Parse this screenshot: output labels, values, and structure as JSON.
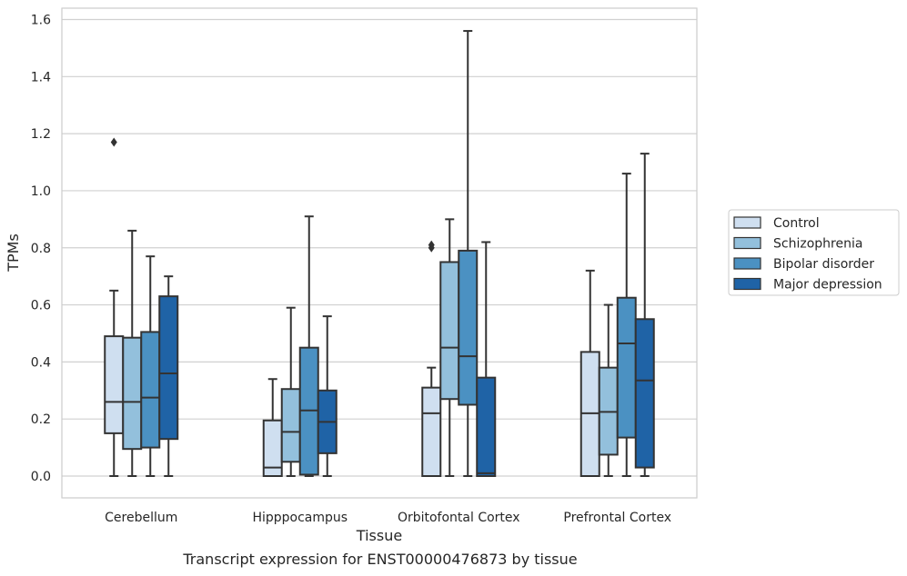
{
  "caption": "Transcript expression for ENST00000476873 by tissue",
  "colors": {
    "Control": "#cfdff0",
    "Schizophrenia": "#93c0dc",
    "Bipolar disorder": "#4b91c2",
    "Major depression": "#1f63a6",
    "grid": "#d0d0d0",
    "line": "#333333"
  },
  "chart_data": {
    "type": "box",
    "xlabel": "Tissue",
    "ylabel": "TPMs",
    "ylim": [
      -0.08,
      1.64
    ],
    "yticks": [
      "0.0",
      "0.2",
      "0.4",
      "0.6",
      "0.8",
      "1.0",
      "1.2",
      "1.4",
      "1.6"
    ],
    "categories": [
      "Cerebellum",
      "Hipppocampus",
      "Orbitofontal Cortex",
      "Prefrontal Cortex"
    ],
    "legend": {
      "placement": "right",
      "entries": [
        "Control",
        "Schizophrenia",
        "Bipolar disorder",
        "Major depression"
      ]
    },
    "grid": "horizontal",
    "series": [
      {
        "name": "Control",
        "boxes": [
          {
            "min": 0.0,
            "q1": 0.15,
            "median": 0.26,
            "q3": 0.49,
            "max": 0.65,
            "outliers": [
              1.17
            ]
          },
          {
            "min": 0.0,
            "q1": 0.0,
            "median": 0.03,
            "q3": 0.195,
            "max": 0.34,
            "outliers": []
          },
          {
            "min": 0.0,
            "q1": 0.0,
            "median": 0.22,
            "q3": 0.31,
            "max": 0.38,
            "outliers": [
              0.8,
              0.81
            ]
          },
          {
            "min": 0.0,
            "q1": 0.0,
            "median": 0.22,
            "q3": 0.435,
            "max": 0.72,
            "outliers": []
          }
        ]
      },
      {
        "name": "Schizophrenia",
        "boxes": [
          {
            "min": 0.0,
            "q1": 0.095,
            "median": 0.26,
            "q3": 0.485,
            "max": 0.86,
            "outliers": []
          },
          {
            "min": 0.0,
            "q1": 0.05,
            "median": 0.155,
            "q3": 0.305,
            "max": 0.59,
            "outliers": []
          },
          {
            "min": 0.0,
            "q1": 0.27,
            "median": 0.45,
            "q3": 0.75,
            "max": 0.9,
            "outliers": []
          },
          {
            "min": 0.0,
            "q1": 0.075,
            "median": 0.225,
            "q3": 0.38,
            "max": 0.6,
            "outliers": []
          }
        ]
      },
      {
        "name": "Bipolar disorder",
        "boxes": [
          {
            "min": 0.0,
            "q1": 0.1,
            "median": 0.275,
            "q3": 0.505,
            "max": 0.77,
            "outliers": []
          },
          {
            "min": 0.0,
            "q1": 0.005,
            "median": 0.23,
            "q3": 0.45,
            "max": 0.91,
            "outliers": []
          },
          {
            "min": 0.0,
            "q1": 0.25,
            "median": 0.42,
            "q3": 0.79,
            "max": 1.56,
            "outliers": []
          },
          {
            "min": 0.0,
            "q1": 0.135,
            "median": 0.465,
            "q3": 0.625,
            "max": 1.06,
            "outliers": []
          }
        ]
      },
      {
        "name": "Major depression",
        "boxes": [
          {
            "min": 0.0,
            "q1": 0.13,
            "median": 0.36,
            "q3": 0.63,
            "max": 0.7,
            "outliers": []
          },
          {
            "min": 0.0,
            "q1": 0.08,
            "median": 0.19,
            "q3": 0.3,
            "max": 0.56,
            "outliers": []
          },
          {
            "min": 0.0,
            "q1": 0.0,
            "median": 0.01,
            "q3": 0.345,
            "max": 0.82,
            "outliers": []
          },
          {
            "min": 0.0,
            "q1": 0.03,
            "median": 0.335,
            "q3": 0.55,
            "max": 1.13,
            "outliers": []
          }
        ]
      }
    ]
  }
}
